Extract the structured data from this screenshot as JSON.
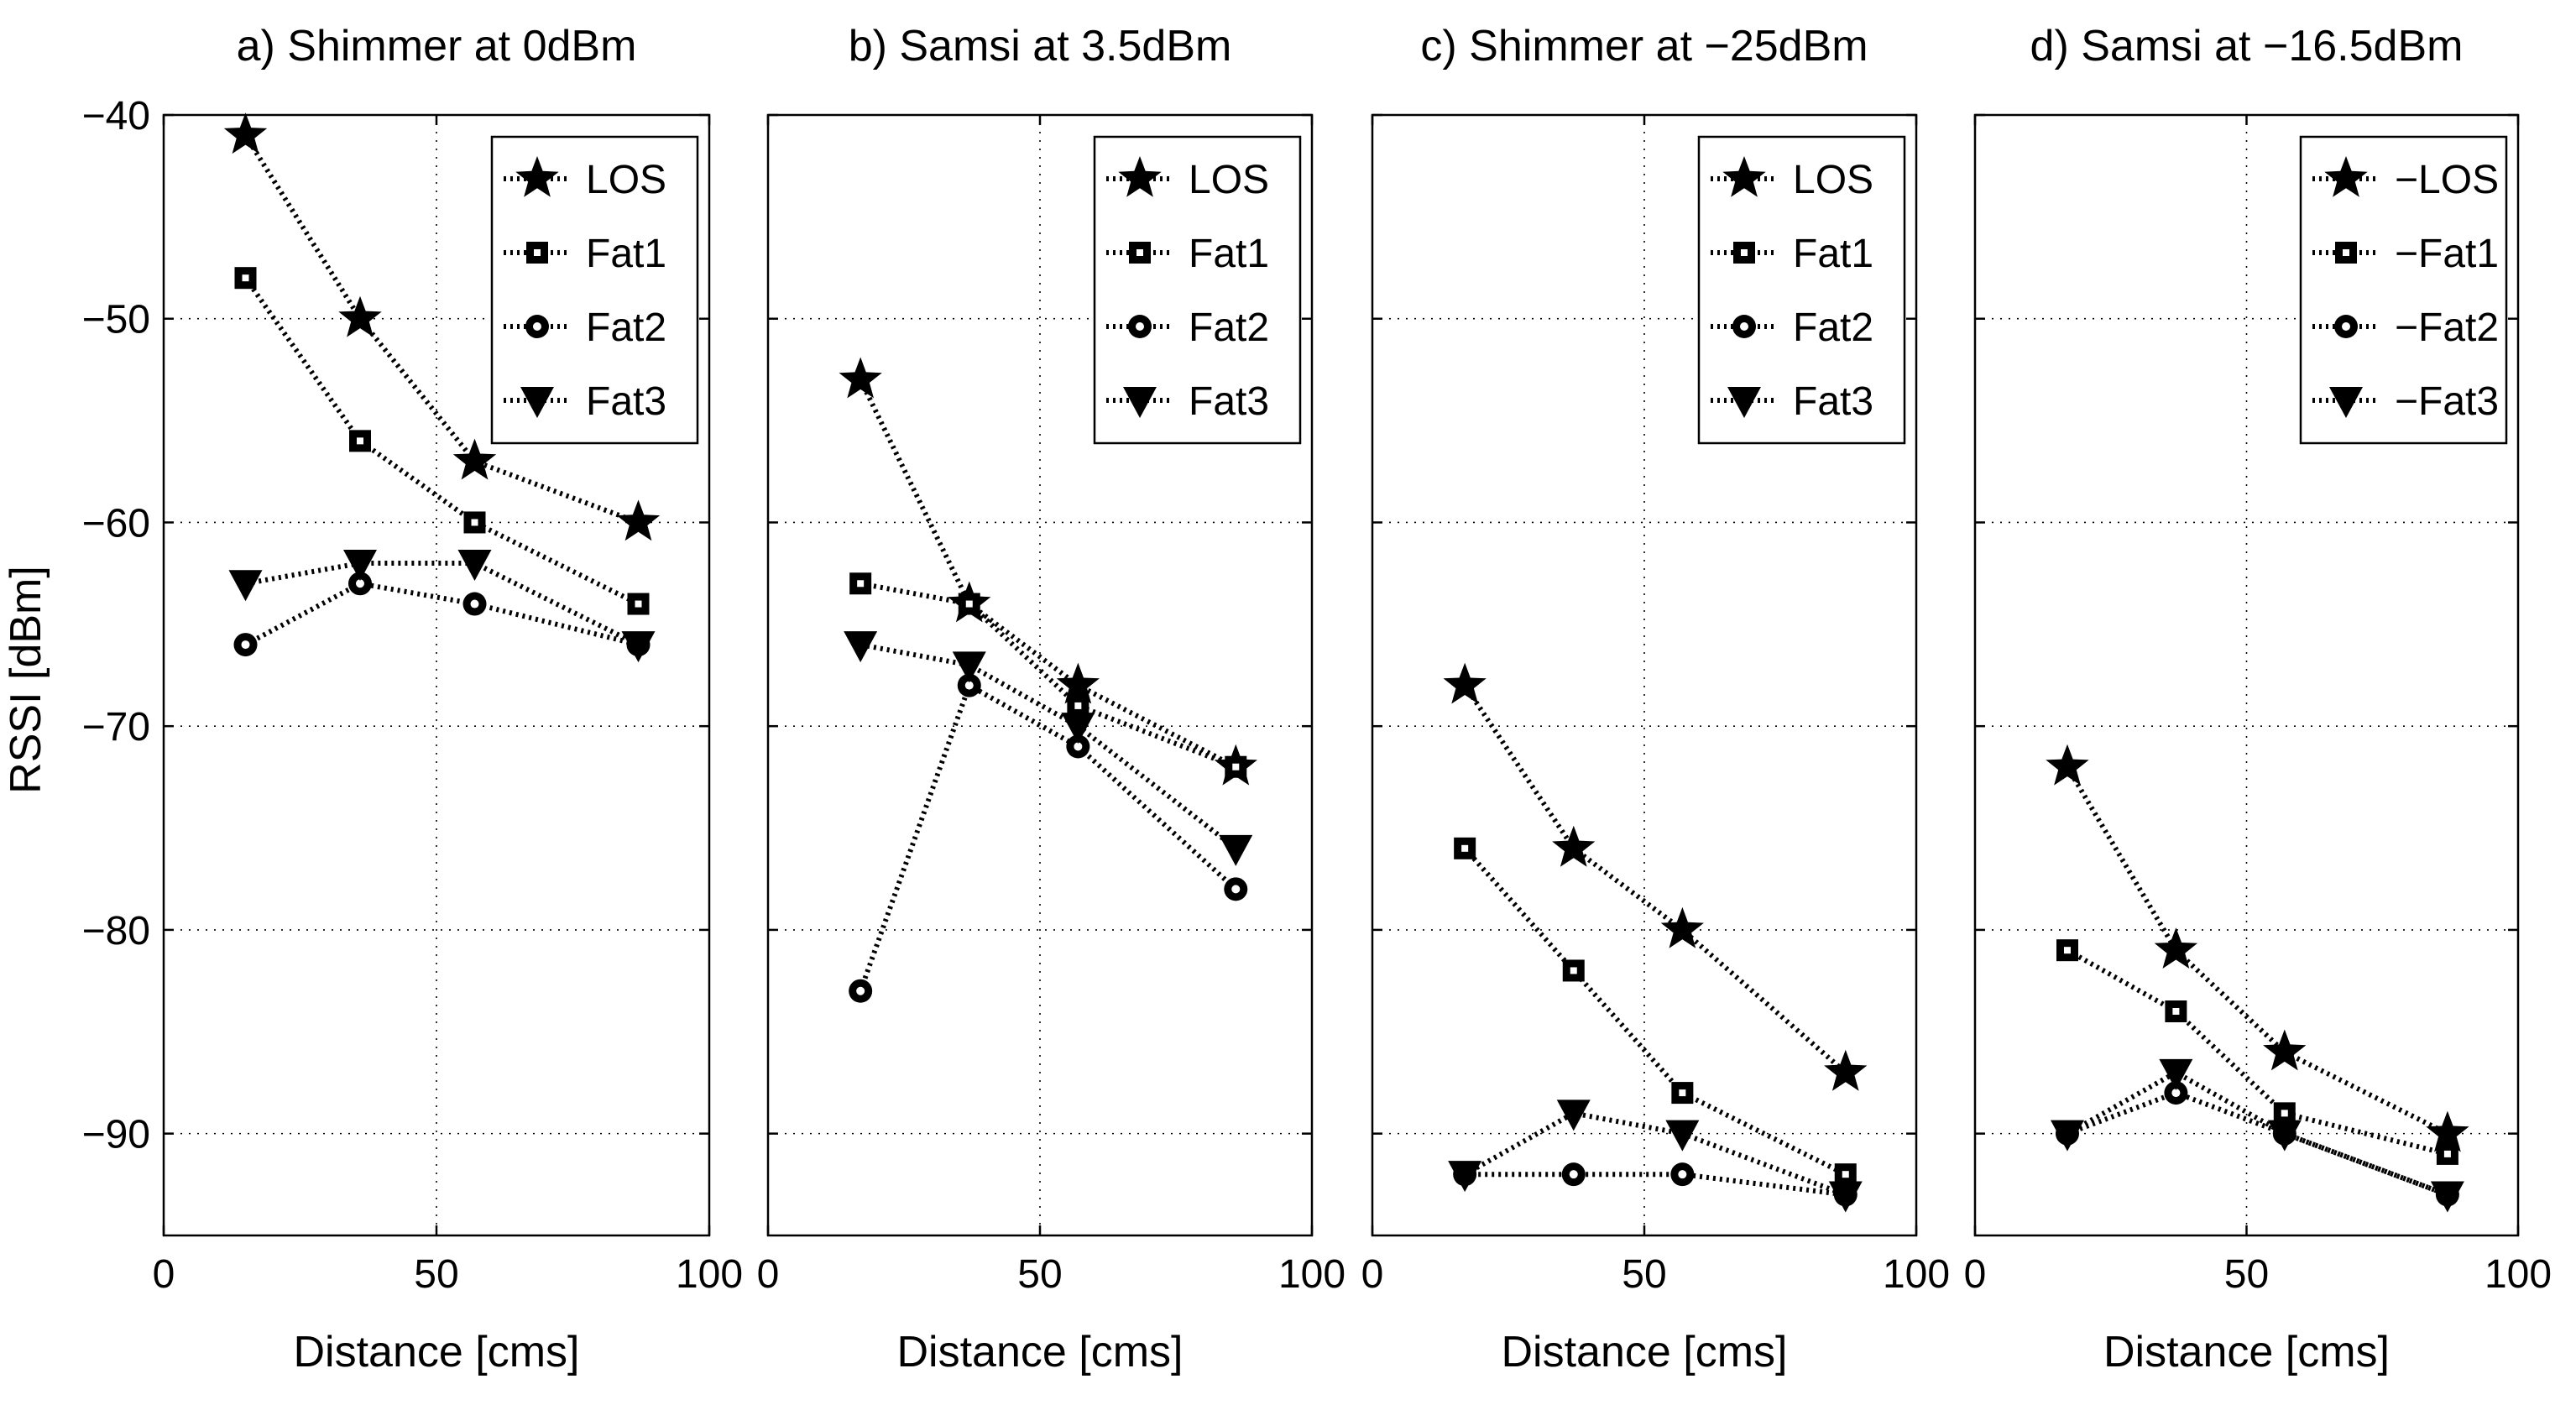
{
  "figure": {
    "ylabel": "RSSI [dBm]"
  },
  "chart_data": [
    {
      "type": "line",
      "title": "a) Shimmer at 0dBm",
      "xlabel": "Distance [cms]",
      "ylabel": "RSSI [dBm]",
      "xlim": [
        0,
        100
      ],
      "ylim": [
        -95,
        -40
      ],
      "xticks": [
        0,
        50,
        100
      ],
      "yticks": [
        -40,
        -50,
        -60,
        -70,
        -80,
        -90
      ],
      "grid": true,
      "legend_placement": "top-right",
      "series": [
        {
          "name": "LOS",
          "marker": "star",
          "x": [
            15,
            36,
            57,
            87
          ],
          "values": [
            -41,
            -50,
            -57,
            -60
          ]
        },
        {
          "name": "Fat1",
          "marker": "square",
          "x": [
            15,
            36,
            57,
            87
          ],
          "values": [
            -48,
            -56,
            -60,
            -64
          ]
        },
        {
          "name": "Fat2",
          "marker": "circle",
          "x": [
            15,
            36,
            57,
            87
          ],
          "values": [
            -66,
            -63,
            -64,
            -66
          ]
        },
        {
          "name": "Fat3",
          "marker": "triangle",
          "x": [
            15,
            36,
            57,
            87
          ],
          "values": [
            -63,
            -62,
            -62,
            -66
          ]
        }
      ]
    },
    {
      "type": "line",
      "title": "b) Samsi at 3.5dBm",
      "xlabel": "Distance [cms]",
      "ylabel": "",
      "xlim": [
        0,
        100
      ],
      "ylim": [
        -95,
        -40
      ],
      "xticks": [
        0,
        50,
        100
      ],
      "yticks": [],
      "grid": true,
      "legend_placement": "top-right",
      "series": [
        {
          "name": "LOS",
          "marker": "star",
          "x": [
            17,
            37,
            57,
            86
          ],
          "values": [
            -53,
            -64,
            -68,
            -72
          ]
        },
        {
          "name": "Fat1",
          "marker": "square",
          "x": [
            17,
            37,
            57,
            86
          ],
          "values": [
            -63,
            -64,
            -69,
            -72
          ]
        },
        {
          "name": "Fat2",
          "marker": "circle",
          "x": [
            17,
            37,
            57,
            86
          ],
          "values": [
            -83,
            -68,
            -71,
            -78
          ]
        },
        {
          "name": "Fat3",
          "marker": "triangle",
          "x": [
            17,
            37,
            57,
            86
          ],
          "values": [
            -66,
            -67,
            -70,
            -76
          ]
        }
      ]
    },
    {
      "type": "line",
      "title": "c) Shimmer at −25dBm",
      "xlabel": "Distance [cms]",
      "ylabel": "",
      "xlim": [
        0,
        100
      ],
      "ylim": [
        -95,
        -40
      ],
      "xticks": [
        0,
        50,
        100
      ],
      "yticks": [],
      "grid": true,
      "legend_placement": "top-right",
      "series": [
        {
          "name": "LOS",
          "marker": "star",
          "x": [
            17,
            37,
            57,
            87
          ],
          "values": [
            -68,
            -76,
            -80,
            -87
          ]
        },
        {
          "name": "Fat1",
          "marker": "square",
          "x": [
            17,
            37,
            57,
            87
          ],
          "values": [
            -76,
            -82,
            -88,
            -92
          ]
        },
        {
          "name": "Fat2",
          "marker": "circle",
          "x": [
            17,
            37,
            57,
            87
          ],
          "values": [
            -92,
            -92,
            -92,
            -93
          ]
        },
        {
          "name": "Fat3",
          "marker": "triangle",
          "x": [
            17,
            37,
            57,
            87
          ],
          "values": [
            -92,
            -89,
            -90,
            -93
          ]
        }
      ]
    },
    {
      "type": "line",
      "title": "d) Samsi at −16.5dBm",
      "xlabel": "Distance [cms]",
      "ylabel": "",
      "xlim": [
        0,
        100
      ],
      "ylim": [
        -95,
        -40
      ],
      "xticks": [
        0,
        50,
        100
      ],
      "yticks": [],
      "grid": true,
      "legend_placement": "top-right",
      "series": [
        {
          "name": "−LOS",
          "marker": "star",
          "x": [
            17,
            37,
            57,
            87
          ],
          "values": [
            -72,
            -81,
            -86,
            -90
          ]
        },
        {
          "name": "−Fat1",
          "marker": "square",
          "x": [
            17,
            37,
            57,
            87
          ],
          "values": [
            -81,
            -84,
            -89,
            -91
          ]
        },
        {
          "name": "−Fat2",
          "marker": "circle",
          "x": [
            17,
            37,
            57,
            87
          ],
          "values": [
            -90,
            -88,
            -90,
            -93
          ]
        },
        {
          "name": "−Fat3",
          "marker": "triangle",
          "x": [
            17,
            37,
            57,
            87
          ],
          "values": [
            -90,
            -87,
            -90,
            -93
          ]
        }
      ]
    }
  ]
}
